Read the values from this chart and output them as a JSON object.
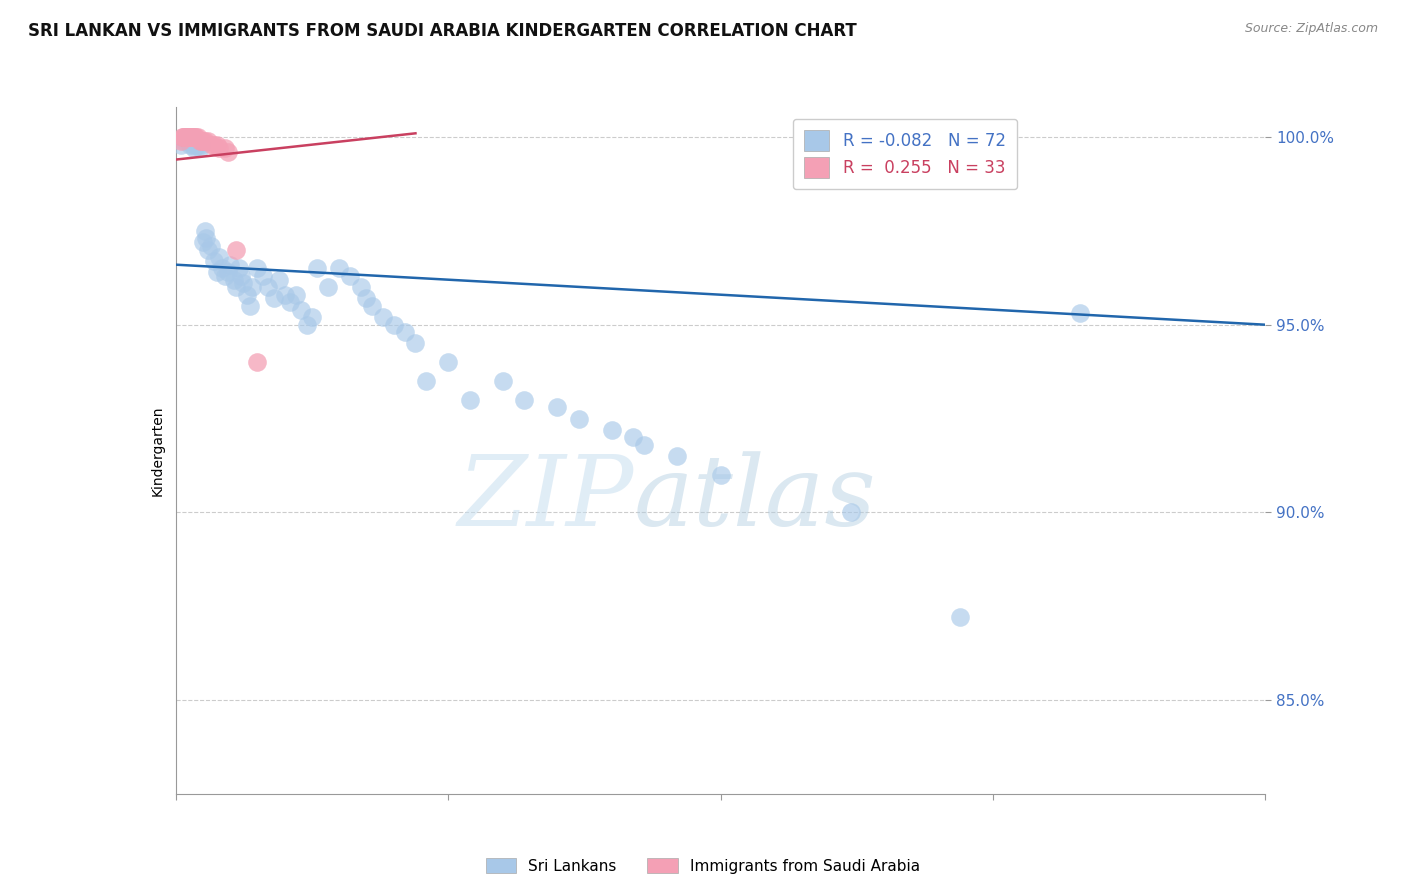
{
  "title": "SRI LANKAN VS IMMIGRANTS FROM SAUDI ARABIA KINDERGARTEN CORRELATION CHART",
  "source": "Source: ZipAtlas.com",
  "ylabel": "Kindergarten",
  "x_range": [
    0.0,
    1.0
  ],
  "y_range": [
    0.825,
    1.008
  ],
  "blue_R": -0.082,
  "blue_N": 72,
  "pink_R": 0.255,
  "pink_N": 33,
  "legend_label_blue": "Sri Lankans",
  "legend_label_pink": "Immigrants from Saudi Arabia",
  "blue_color": "#a8c8e8",
  "pink_color": "#f4a0b5",
  "blue_line_color": "#2166ac",
  "pink_line_color": "#c94060",
  "watermark_zip": "ZIP",
  "watermark_atlas": "atlas",
  "grid_color": "#cccccc",
  "background_color": "#ffffff",
  "tick_label_color": "#4472c4",
  "title_fontsize": 12,
  "axis_label_fontsize": 10,
  "tick_fontsize": 11,
  "blue_scatter_x": [
    0.005,
    0.008,
    0.01,
    0.01,
    0.012,
    0.013,
    0.015,
    0.015,
    0.016,
    0.017,
    0.018,
    0.019,
    0.02,
    0.022,
    0.023,
    0.025,
    0.027,
    0.028,
    0.03,
    0.032,
    0.035,
    0.038,
    0.04,
    0.042,
    0.045,
    0.048,
    0.05,
    0.053,
    0.055,
    0.058,
    0.06,
    0.062,
    0.065,
    0.068,
    0.07,
    0.075,
    0.08,
    0.085,
    0.09,
    0.095,
    0.1,
    0.105,
    0.11,
    0.115,
    0.12,
    0.125,
    0.13,
    0.14,
    0.15,
    0.16,
    0.17,
    0.175,
    0.18,
    0.19,
    0.2,
    0.21,
    0.22,
    0.23,
    0.25,
    0.27,
    0.3,
    0.32,
    0.35,
    0.37,
    0.4,
    0.42,
    0.43,
    0.46,
    0.5,
    0.62,
    0.72,
    0.83
  ],
  "blue_scatter_y": [
    0.998,
    0.999,
    1.0,
    1.0,
    0.999,
    0.998,
    0.999,
    1.0,
    0.998,
    0.997,
    0.999,
    0.998,
    0.998,
    0.997,
    0.998,
    0.972,
    0.975,
    0.973,
    0.97,
    0.971,
    0.967,
    0.964,
    0.968,
    0.965,
    0.963,
    0.964,
    0.966,
    0.962,
    0.96,
    0.965,
    0.963,
    0.961,
    0.958,
    0.955,
    0.96,
    0.965,
    0.963,
    0.96,
    0.957,
    0.962,
    0.958,
    0.956,
    0.958,
    0.954,
    0.95,
    0.952,
    0.965,
    0.96,
    0.965,
    0.963,
    0.96,
    0.957,
    0.955,
    0.952,
    0.95,
    0.948,
    0.945,
    0.935,
    0.94,
    0.93,
    0.935,
    0.93,
    0.928,
    0.925,
    0.922,
    0.92,
    0.918,
    0.915,
    0.91,
    0.9,
    0.872,
    0.953
  ],
  "pink_scatter_x": [
    0.005,
    0.006,
    0.007,
    0.008,
    0.008,
    0.009,
    0.01,
    0.01,
    0.011,
    0.012,
    0.012,
    0.013,
    0.013,
    0.014,
    0.015,
    0.016,
    0.017,
    0.018,
    0.019,
    0.02,
    0.022,
    0.023,
    0.025,
    0.027,
    0.03,
    0.033,
    0.035,
    0.038,
    0.04,
    0.045,
    0.048,
    0.055,
    0.075
  ],
  "pink_scatter_y": [
    0.999,
    1.0,
    1.0,
    1.0,
    1.0,
    1.0,
    1.0,
    1.0,
    1.0,
    1.0,
    1.0,
    1.0,
    1.0,
    1.0,
    1.0,
    1.0,
    1.0,
    1.0,
    1.0,
    1.0,
    0.999,
    0.999,
    0.999,
    0.999,
    0.999,
    0.998,
    0.998,
    0.998,
    0.997,
    0.997,
    0.996,
    0.97,
    0.94
  ],
  "blue_line_x": [
    0.0,
    1.0
  ],
  "blue_line_y": [
    0.966,
    0.95
  ],
  "pink_line_x": [
    0.0,
    0.22
  ],
  "pink_line_y": [
    0.994,
    1.001
  ]
}
